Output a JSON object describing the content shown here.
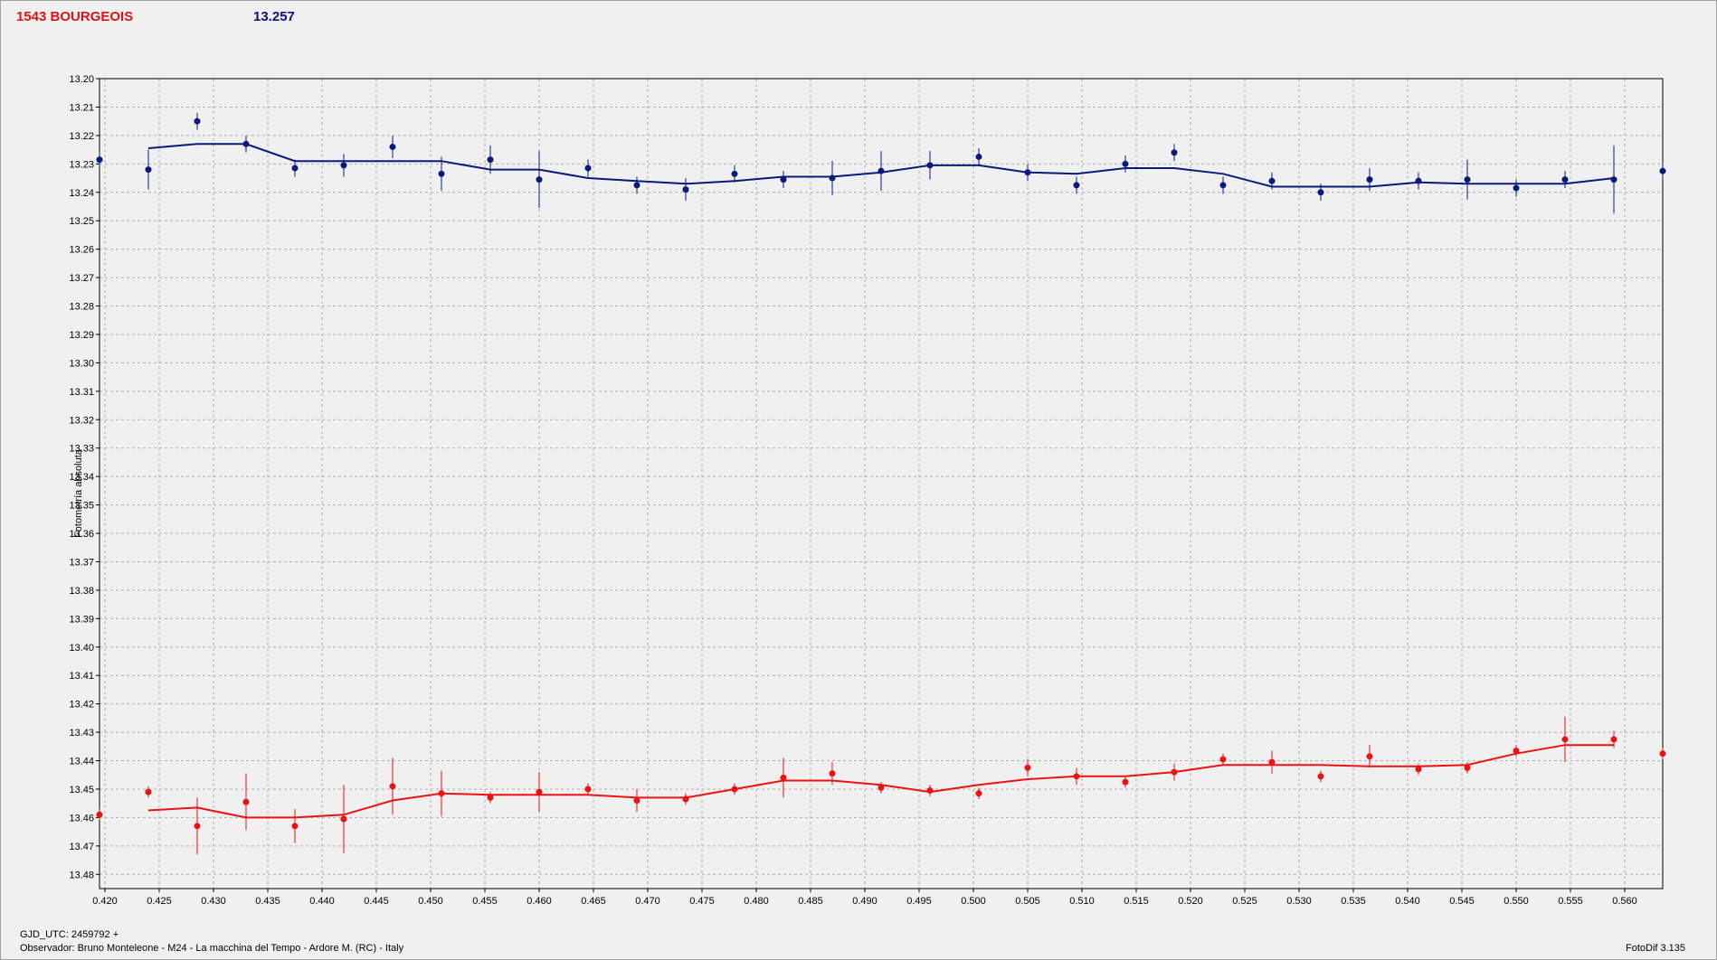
{
  "header": {
    "title": "1543 BOURGEOIS",
    "value": "13.257"
  },
  "footer": {
    "gjd": "GJD_UTC: 2459792 +",
    "observer": "Observador: Bruno Monteleone - M24 - La macchina del Tempo - Ardore M. (RC) - Italy",
    "software": "FotoDif 3.135"
  },
  "colors": {
    "blue": "#0a1a7a",
    "red": "#ee1111",
    "grid": "#b0b0b0",
    "plot_bg": "#f0f0f0"
  },
  "chart_data": {
    "type": "scatter",
    "ylabel": "Fotometría absoluta",
    "xlabel": "",
    "xlim": [
      0.4195,
      0.5635
    ],
    "ylim": [
      13.485,
      13.2
    ],
    "y_inverted": true,
    "grid": true,
    "x_ticks": [
      "0.420",
      "0.425",
      "0.430",
      "0.435",
      "0.440",
      "0.445",
      "0.450",
      "0.455",
      "0.460",
      "0.465",
      "0.470",
      "0.475",
      "0.480",
      "0.485",
      "0.490",
      "0.495",
      "0.500",
      "0.505",
      "0.510",
      "0.515",
      "0.520",
      "0.525",
      "0.530",
      "0.535",
      "0.540",
      "0.545",
      "0.550",
      "0.555",
      "0.560"
    ],
    "y_ticks": [
      "13.20",
      "13.21",
      "13.22",
      "13.23",
      "13.24",
      "13.25",
      "13.26",
      "13.27",
      "13.28",
      "13.29",
      "13.30",
      "13.31",
      "13.32",
      "13.33",
      "13.34",
      "13.35",
      "13.36",
      "13.37",
      "13.38",
      "13.39",
      "13.40",
      "13.41",
      "13.42",
      "13.43",
      "13.44",
      "13.45",
      "13.46",
      "13.47",
      "13.48"
    ],
    "series": [
      {
        "color": "#0a1a7a",
        "points": [
          {
            "x": 0.4195,
            "y": 13.2285,
            "err": 0.003
          },
          {
            "x": 0.424,
            "y": 13.232,
            "err": 0.007
          },
          {
            "x": 0.4285,
            "y": 13.215,
            "err": 0.003
          },
          {
            "x": 0.433,
            "y": 13.223,
            "err": 0.003
          },
          {
            "x": 0.4375,
            "y": 13.2315,
            "err": 0.003
          },
          {
            "x": 0.442,
            "y": 13.2305,
            "err": 0.004
          },
          {
            "x": 0.4465,
            "y": 13.224,
            "err": 0.004
          },
          {
            "x": 0.451,
            "y": 13.2335,
            "err": 0.006
          },
          {
            "x": 0.4555,
            "y": 13.2285,
            "err": 0.005
          },
          {
            "x": 0.46,
            "y": 13.2355,
            "err": 0.01
          },
          {
            "x": 0.4645,
            "y": 13.2315,
            "err": 0.003
          },
          {
            "x": 0.469,
            "y": 13.2375,
            "err": 0.003
          },
          {
            "x": 0.4735,
            "y": 13.239,
            "err": 0.004
          },
          {
            "x": 0.478,
            "y": 13.2335,
            "err": 0.003
          },
          {
            "x": 0.4825,
            "y": 13.2355,
            "err": 0.003
          },
          {
            "x": 0.487,
            "y": 13.235,
            "err": 0.006
          },
          {
            "x": 0.4915,
            "y": 13.2325,
            "err": 0.007
          },
          {
            "x": 0.496,
            "y": 13.2305,
            "err": 0.005
          },
          {
            "x": 0.5005,
            "y": 13.2275,
            "err": 0.003
          },
          {
            "x": 0.505,
            "y": 13.233,
            "err": 0.003
          },
          {
            "x": 0.5095,
            "y": 13.2375,
            "err": 0.003
          },
          {
            "x": 0.514,
            "y": 13.23,
            "err": 0.003
          },
          {
            "x": 0.5185,
            "y": 13.226,
            "err": 0.003
          },
          {
            "x": 0.523,
            "y": 13.2375,
            "err": 0.003
          },
          {
            "x": 0.5275,
            "y": 13.236,
            "err": 0.003
          },
          {
            "x": 0.532,
            "y": 13.24,
            "err": 0.003
          },
          {
            "x": 0.5365,
            "y": 13.2355,
            "err": 0.004
          },
          {
            "x": 0.541,
            "y": 13.236,
            "err": 0.003
          },
          {
            "x": 0.5455,
            "y": 13.2355,
            "err": 0.007
          },
          {
            "x": 0.55,
            "y": 13.2385,
            "err": 0.003
          },
          {
            "x": 0.5545,
            "y": 13.2355,
            "err": 0.003
          },
          {
            "x": 0.559,
            "y": 13.2355,
            "err": 0.012
          },
          {
            "x": 0.5635,
            "y": 13.2325,
            "err": 0.003
          }
        ],
        "trend": [
          [
            0.424,
            13.2245
          ],
          [
            0.4285,
            13.223
          ],
          [
            0.433,
            13.223
          ],
          [
            0.4375,
            13.229
          ],
          [
            0.442,
            13.229
          ],
          [
            0.4465,
            13.229
          ],
          [
            0.451,
            13.229
          ],
          [
            0.4555,
            13.232
          ],
          [
            0.46,
            13.232
          ],
          [
            0.4645,
            13.235
          ],
          [
            0.469,
            13.236
          ],
          [
            0.4735,
            13.237
          ],
          [
            0.478,
            13.236
          ],
          [
            0.4825,
            13.2345
          ],
          [
            0.487,
            13.2345
          ],
          [
            0.4915,
            13.233
          ],
          [
            0.496,
            13.2305
          ],
          [
            0.5005,
            13.2305
          ],
          [
            0.505,
            13.233
          ],
          [
            0.5095,
            13.2335
          ],
          [
            0.514,
            13.2315
          ],
          [
            0.5185,
            13.2315
          ],
          [
            0.523,
            13.2335
          ],
          [
            0.5275,
            13.238
          ],
          [
            0.532,
            13.238
          ],
          [
            0.5365,
            13.238
          ],
          [
            0.541,
            13.2365
          ],
          [
            0.5455,
            13.237
          ],
          [
            0.55,
            13.237
          ],
          [
            0.5545,
            13.237
          ],
          [
            0.559,
            13.235
          ]
        ]
      },
      {
        "color": "#ee1111",
        "points": [
          {
            "x": 0.4195,
            "y": 13.459,
            "err": 0.002
          },
          {
            "x": 0.424,
            "y": 13.451,
            "err": 0.002
          },
          {
            "x": 0.4285,
            "y": 13.463,
            "err": 0.01
          },
          {
            "x": 0.433,
            "y": 13.4545,
            "err": 0.01
          },
          {
            "x": 0.4375,
            "y": 13.463,
            "err": 0.006
          },
          {
            "x": 0.442,
            "y": 13.4605,
            "err": 0.012
          },
          {
            "x": 0.4465,
            "y": 13.449,
            "err": 0.01
          },
          {
            "x": 0.451,
            "y": 13.4515,
            "err": 0.008
          },
          {
            "x": 0.4555,
            "y": 13.453,
            "err": 0.002
          },
          {
            "x": 0.46,
            "y": 13.451,
            "err": 0.007
          },
          {
            "x": 0.4645,
            "y": 13.45,
            "err": 0.002
          },
          {
            "x": 0.469,
            "y": 13.454,
            "err": 0.004
          },
          {
            "x": 0.4735,
            "y": 13.4535,
            "err": 0.002
          },
          {
            "x": 0.478,
            "y": 13.45,
            "err": 0.002
          },
          {
            "x": 0.4825,
            "y": 13.446,
            "err": 0.007
          },
          {
            "x": 0.487,
            "y": 13.4445,
            "err": 0.004
          },
          {
            "x": 0.4915,
            "y": 13.4495,
            "err": 0.002
          },
          {
            "x": 0.496,
            "y": 13.4505,
            "err": 0.002
          },
          {
            "x": 0.5005,
            "y": 13.4515,
            "err": 0.002
          },
          {
            "x": 0.505,
            "y": 13.4425,
            "err": 0.003
          },
          {
            "x": 0.5095,
            "y": 13.4455,
            "err": 0.003
          },
          {
            "x": 0.514,
            "y": 13.4475,
            "err": 0.002
          },
          {
            "x": 0.5185,
            "y": 13.444,
            "err": 0.003
          },
          {
            "x": 0.523,
            "y": 13.4395,
            "err": 0.002
          },
          {
            "x": 0.5275,
            "y": 13.4405,
            "err": 0.004
          },
          {
            "x": 0.532,
            "y": 13.4455,
            "err": 0.002
          },
          {
            "x": 0.5365,
            "y": 13.4385,
            "err": 0.004
          },
          {
            "x": 0.541,
            "y": 13.443,
            "err": 0.002
          },
          {
            "x": 0.5455,
            "y": 13.4425,
            "err": 0.002
          },
          {
            "x": 0.55,
            "y": 13.4365,
            "err": 0.002
          },
          {
            "x": 0.5545,
            "y": 13.4325,
            "err": 0.008
          },
          {
            "x": 0.559,
            "y": 13.4325,
            "err": 0.003
          },
          {
            "x": 0.5635,
            "y": 13.4375,
            "err": 0.002
          }
        ],
        "trend": [
          [
            0.424,
            13.4575
          ],
          [
            0.4285,
            13.4565
          ],
          [
            0.433,
            13.46
          ],
          [
            0.4375,
            13.46
          ],
          [
            0.442,
            13.459
          ],
          [
            0.4465,
            13.454
          ],
          [
            0.451,
            13.4515
          ],
          [
            0.4555,
            13.452
          ],
          [
            0.46,
            13.452
          ],
          [
            0.4645,
            13.452
          ],
          [
            0.469,
            13.453
          ],
          [
            0.4735,
            13.453
          ],
          [
            0.478,
            13.45
          ],
          [
            0.4825,
            13.447
          ],
          [
            0.487,
            13.447
          ],
          [
            0.4915,
            13.4485
          ],
          [
            0.496,
            13.451
          ],
          [
            0.5005,
            13.4485
          ],
          [
            0.505,
            13.4465
          ],
          [
            0.5095,
            13.4455
          ],
          [
            0.514,
            13.4455
          ],
          [
            0.5185,
            13.444
          ],
          [
            0.523,
            13.4415
          ],
          [
            0.5275,
            13.4415
          ],
          [
            0.532,
            13.4415
          ],
          [
            0.5365,
            13.442
          ],
          [
            0.541,
            13.442
          ],
          [
            0.5455,
            13.4415
          ],
          [
            0.55,
            13.4375
          ],
          [
            0.5545,
            13.4345
          ],
          [
            0.559,
            13.4345
          ]
        ]
      }
    ]
  }
}
